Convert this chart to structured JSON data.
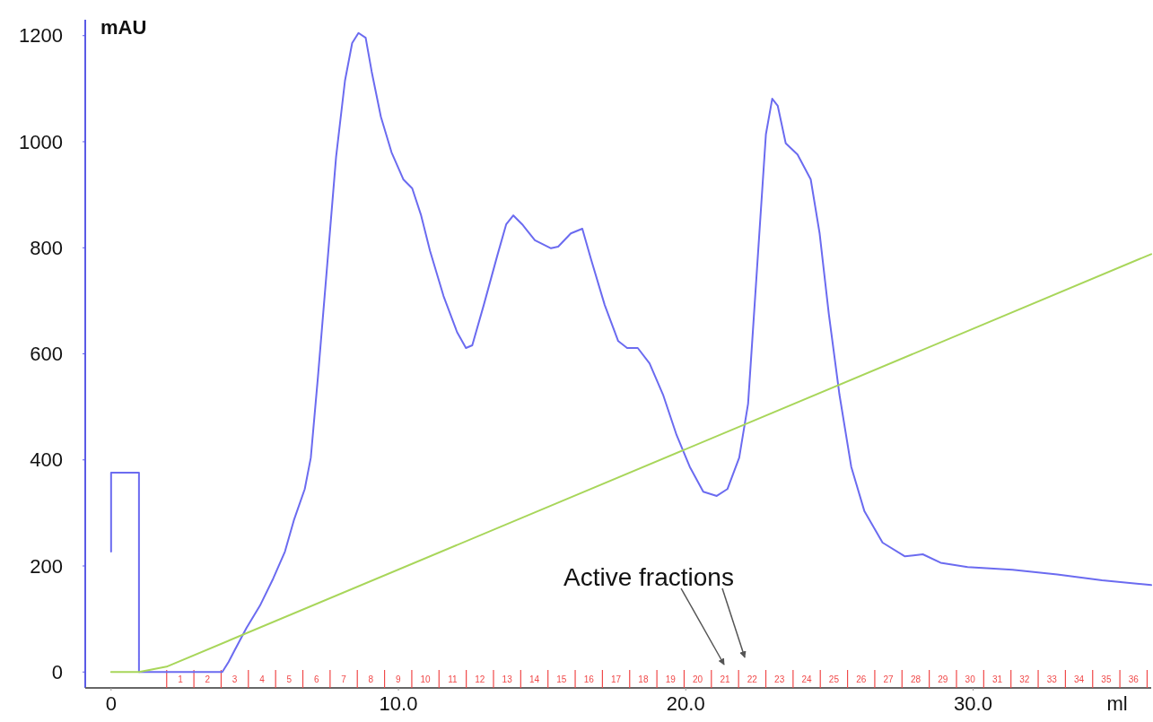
{
  "chart_data": {
    "type": "line",
    "xlabel": "ml",
    "ylabel": "mAU",
    "xlim": [
      -0.9,
      36.2
    ],
    "ylim": [
      -30,
      1230
    ],
    "xticks": [
      0,
      {
        "value": 10,
        "label": "10.0"
      },
      {
        "value": 20,
        "label": "20.0"
      },
      {
        "value": 30,
        "label": "30.0"
      }
    ],
    "yticks": [
      0,
      200,
      400,
      600,
      800,
      1000,
      1200
    ],
    "x2lim": [
      -2.49,
      36.65
    ],
    "x2ticks": [
      1,
      2,
      3,
      4,
      5,
      6,
      7,
      8,
      9,
      10,
      11,
      12,
      13,
      14,
      15,
      16,
      17,
      18,
      19,
      20,
      21,
      22,
      23,
      24,
      25,
      26,
      27,
      28,
      29,
      30,
      31,
      32,
      33,
      34,
      35,
      36
    ],
    "grid": false,
    "marker": "none",
    "line_style": "solid",
    "series": [
      {
        "color": "#6b6bf0",
        "x": [
          0,
          0,
          0.97,
          0.97,
          3.87,
          4.09,
          4.3,
          4.71,
          5.18,
          5.64,
          6.05,
          6.36,
          6.74,
          6.95,
          7.2,
          7.51,
          7.83,
          8.14,
          8.39,
          8.61,
          8.86,
          9.07,
          9.39,
          9.76,
          10.17,
          10.48,
          10.79,
          11.1,
          11.57,
          12.04,
          12.35,
          12.57,
          12.97,
          13.44,
          13.75,
          14.0,
          14.31,
          14.75,
          15.31,
          15.56,
          16.0,
          16.4,
          16.71,
          17.18,
          17.65,
          17.96,
          18.33,
          18.74,
          19.21,
          19.68,
          20.14,
          20.61,
          21.08,
          21.45,
          21.86,
          22.17,
          22.48,
          22.79,
          23.01,
          23.2,
          23.48,
          23.89,
          24.35,
          24.66,
          24.98,
          25.35,
          25.76,
          26.22,
          26.85,
          27.63,
          28.25,
          28.87,
          29.81,
          31.37,
          32.93,
          34.49,
          36.2
        ],
        "values": [
          227,
          376,
          376,
          0,
          0,
          19,
          41,
          83,
          125,
          176,
          227,
          286,
          345,
          404,
          557,
          760,
          971,
          1115,
          1186,
          1205,
          1196,
          1132,
          1047,
          980,
          929,
          912,
          861,
          794,
          709,
          641,
          611,
          616,
          692,
          785,
          844,
          861,
          844,
          814,
          799,
          802,
          827,
          836,
          777,
          692,
          624,
          611,
          611,
          582,
          523,
          447,
          387,
          340,
          332,
          345,
          404,
          506,
          760,
          1014,
          1081,
          1068,
          997,
          976,
          929,
          827,
          675,
          523,
          387,
          303,
          244,
          218,
          222,
          206,
          198,
          193,
          184,
          173,
          164
        ]
      },
      {
        "color": "#a8d65a",
        "x": [
          0,
          0.97,
          1.93,
          36.2
        ],
        "values": [
          0,
          0,
          10,
          788
        ]
      }
    ],
    "annotations": [
      "Active fractions"
    ]
  }
}
